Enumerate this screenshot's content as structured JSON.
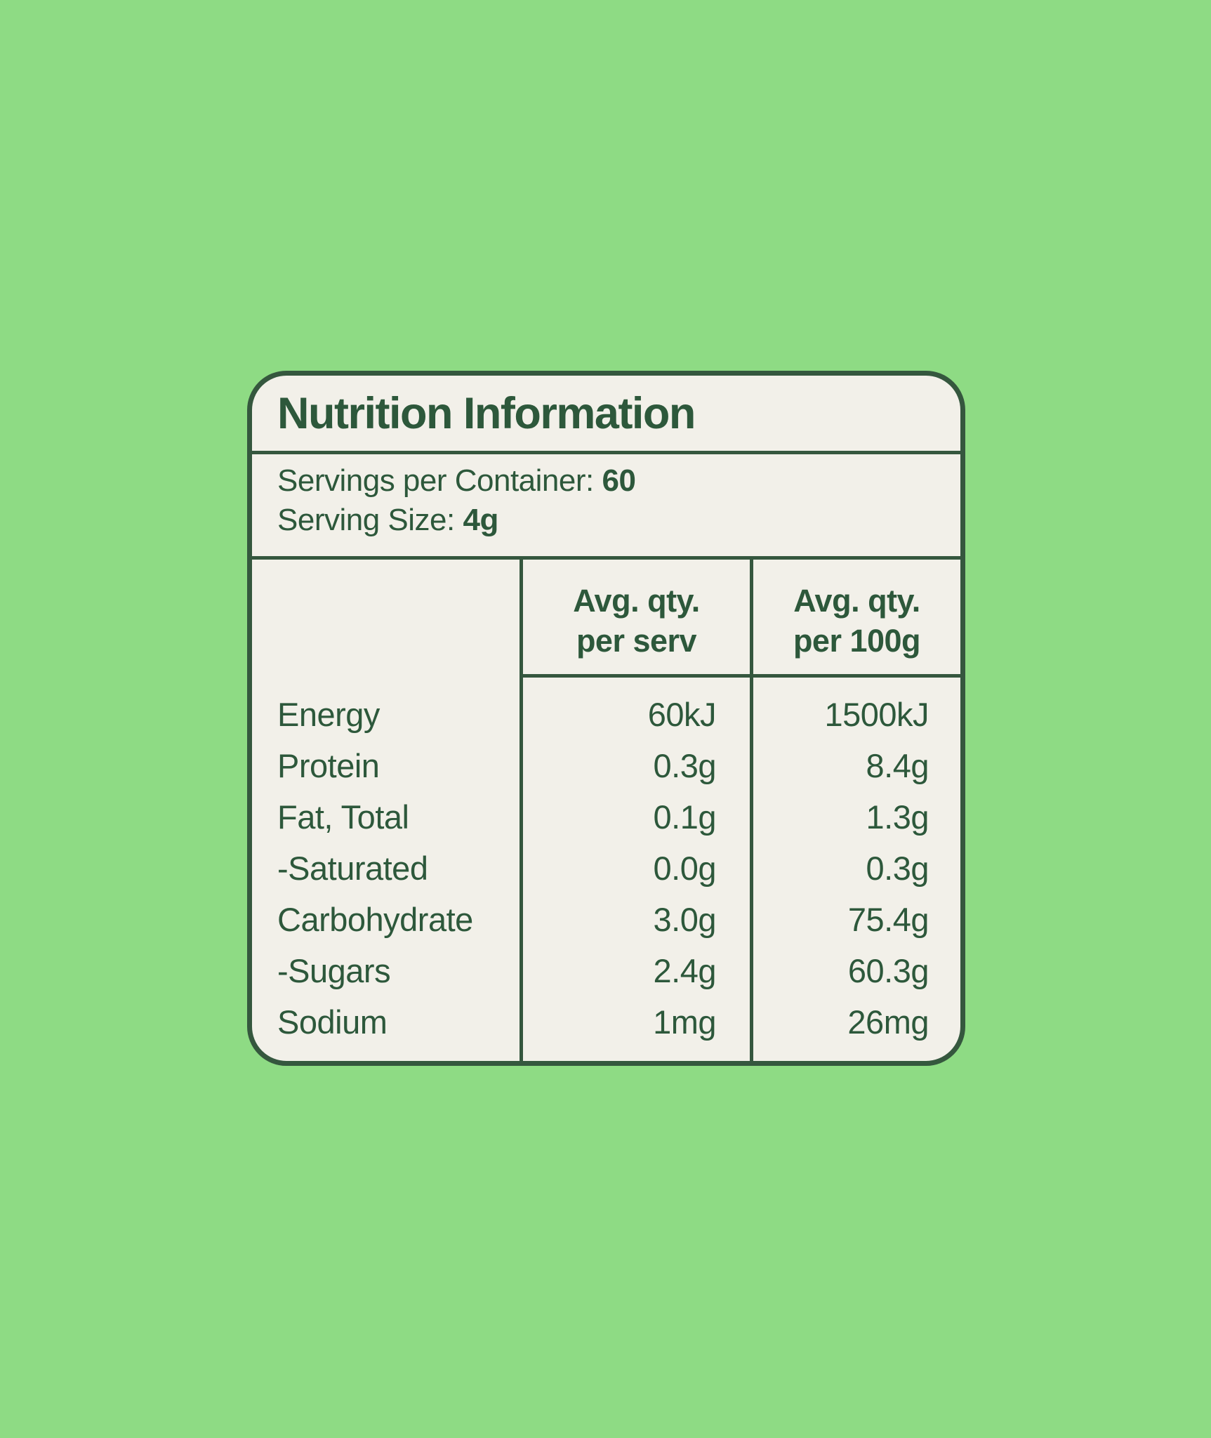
{
  "colors": {
    "background": "#8edb84",
    "card_background": "#f2f0e9",
    "text": "#2d583b",
    "lines": "#35573e"
  },
  "panel": {
    "title": "Nutrition Information",
    "servings_per_container_label": "Servings per Container:",
    "servings_per_container_value": "60",
    "serving_size_label": "Serving Size:",
    "serving_size_value": "4g",
    "columns": {
      "per_serv_line1": "Avg. qty.",
      "per_serv_line2": "per serv",
      "per_100g_line1": "Avg. qty.",
      "per_100g_line2": "per 100g"
    },
    "rows": [
      {
        "nutrient": "Energy",
        "per_serv": "60kJ",
        "per_100g": "1500kJ"
      },
      {
        "nutrient": "Protein",
        "per_serv": "0.3g",
        "per_100g": "8.4g"
      },
      {
        "nutrient": "Fat, Total",
        "per_serv": "0.1g",
        "per_100g": "1.3g"
      },
      {
        "nutrient": "-Saturated",
        "per_serv": "0.0g",
        "per_100g": "0.3g"
      },
      {
        "nutrient": "Carbohydrate",
        "per_serv": "3.0g",
        "per_100g": "75.4g"
      },
      {
        "nutrient": "-Sugars",
        "per_serv": "2.4g",
        "per_100g": "60.3g"
      },
      {
        "nutrient": "Sodium",
        "per_serv": "1mg",
        "per_100g": "26mg"
      }
    ]
  }
}
